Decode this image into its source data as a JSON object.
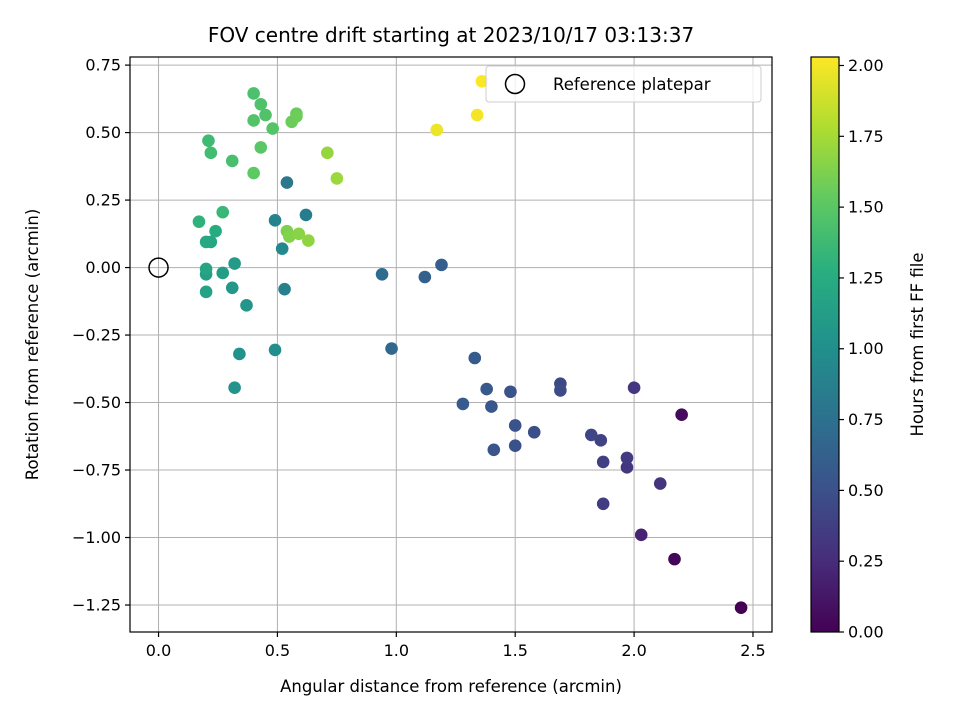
{
  "chart_data": {
    "type": "scatter",
    "title": "FOV centre drift starting at 2023/10/17 03:13:37",
    "xlabel": "Angular distance from reference (arcmin)",
    "ylabel": "Rotation from reference (arcmin)",
    "xlim": [
      -0.12,
      2.58
    ],
    "ylim": [
      -1.35,
      0.78
    ],
    "xticks": [
      0.0,
      0.5,
      1.0,
      1.5,
      2.0,
      2.5
    ],
    "xtick_labels": [
      "0.0",
      "0.5",
      "1.0",
      "1.5",
      "2.0",
      "2.5"
    ],
    "yticks": [
      0.75,
      0.5,
      0.25,
      0.0,
      -0.25,
      -0.5,
      -0.75,
      -1.0,
      -1.25
    ],
    "ytick_labels": [
      "0.75",
      "0.50",
      "0.25",
      "0.00",
      "−0.25",
      "−0.50",
      "−0.75",
      "−1.00",
      "−1.25"
    ],
    "grid": true,
    "legend": {
      "placement": "top-right",
      "entries": [
        "Reference platepar"
      ]
    },
    "reference_point": {
      "x": 0.0,
      "y": 0.0,
      "label": "Reference platepar"
    },
    "colorbar": {
      "label": "Hours from first FF file",
      "colormap": "viridis",
      "range": [
        0.0,
        2.03
      ],
      "ticks": [
        0.0,
        0.25,
        0.5,
        0.75,
        1.0,
        1.25,
        1.5,
        1.75,
        2.0
      ],
      "tick_labels": [
        "0.00",
        "0.25",
        "0.50",
        "0.75",
        "1.00",
        "1.25",
        "1.50",
        "1.75",
        "2.00"
      ]
    },
    "points": [
      {
        "x": 2.45,
        "y": -1.26,
        "hours": 0.0
      },
      {
        "x": 2.17,
        "y": -1.08,
        "hours": 0.03
      },
      {
        "x": 2.2,
        "y": -0.545,
        "hours": 0.05
      },
      {
        "x": 2.03,
        "y": -0.99,
        "hours": 0.2
      },
      {
        "x": 2.11,
        "y": -0.8,
        "hours": 0.3
      },
      {
        "x": 2.0,
        "y": -0.445,
        "hours": 0.32
      },
      {
        "x": 1.97,
        "y": -0.74,
        "hours": 0.33
      },
      {
        "x": 1.97,
        "y": -0.705,
        "hours": 0.35
      },
      {
        "x": 1.87,
        "y": -0.875,
        "hours": 0.36
      },
      {
        "x": 1.87,
        "y": -0.72,
        "hours": 0.38
      },
      {
        "x": 1.86,
        "y": -0.64,
        "hours": 0.4
      },
      {
        "x": 1.82,
        "y": -0.62,
        "hours": 0.42
      },
      {
        "x": 1.69,
        "y": -0.43,
        "hours": 0.44
      },
      {
        "x": 1.69,
        "y": -0.455,
        "hours": 0.46
      },
      {
        "x": 1.58,
        "y": -0.61,
        "hours": 0.48
      },
      {
        "x": 1.5,
        "y": -0.66,
        "hours": 0.5
      },
      {
        "x": 1.5,
        "y": -0.585,
        "hours": 0.51
      },
      {
        "x": 1.48,
        "y": -0.46,
        "hours": 0.52
      },
      {
        "x": 1.41,
        "y": -0.675,
        "hours": 0.53
      },
      {
        "x": 1.4,
        "y": -0.515,
        "hours": 0.55
      },
      {
        "x": 1.38,
        "y": -0.45,
        "hours": 0.56
      },
      {
        "x": 1.33,
        "y": -0.335,
        "hours": 0.57
      },
      {
        "x": 1.28,
        "y": -0.505,
        "hours": 0.58
      },
      {
        "x": 1.19,
        "y": 0.01,
        "hours": 0.6
      },
      {
        "x": 1.12,
        "y": -0.035,
        "hours": 0.62
      },
      {
        "x": 0.98,
        "y": -0.3,
        "hours": 0.68
      },
      {
        "x": 0.94,
        "y": -0.025,
        "hours": 0.72
      },
      {
        "x": 0.54,
        "y": 0.315,
        "hours": 0.8
      },
      {
        "x": 0.62,
        "y": 0.195,
        "hours": 0.85
      },
      {
        "x": 0.53,
        "y": -0.08,
        "hours": 0.88
      },
      {
        "x": 0.49,
        "y": 0.175,
        "hours": 0.9
      },
      {
        "x": 0.52,
        "y": 0.07,
        "hours": 0.95
      },
      {
        "x": 0.49,
        "y": -0.305,
        "hours": 1.0
      },
      {
        "x": 0.34,
        "y": -0.32,
        "hours": 1.02
      },
      {
        "x": 0.32,
        "y": -0.445,
        "hours": 1.04
      },
      {
        "x": 0.37,
        "y": -0.14,
        "hours": 1.06
      },
      {
        "x": 0.31,
        "y": -0.075,
        "hours": 1.08
      },
      {
        "x": 0.32,
        "y": 0.015,
        "hours": 1.1
      },
      {
        "x": 0.27,
        "y": -0.02,
        "hours": 1.12
      },
      {
        "x": 0.2,
        "y": -0.025,
        "hours": 1.14
      },
      {
        "x": 0.2,
        "y": -0.09,
        "hours": 1.16
      },
      {
        "x": 0.2,
        "y": -0.005,
        "hours": 1.18
      },
      {
        "x": 0.22,
        "y": 0.095,
        "hours": 1.2
      },
      {
        "x": 0.2,
        "y": 0.095,
        "hours": 1.22
      },
      {
        "x": 0.24,
        "y": 0.135,
        "hours": 1.25
      },
      {
        "x": 0.17,
        "y": 0.17,
        "hours": 1.3
      },
      {
        "x": 0.27,
        "y": 0.205,
        "hours": 1.35
      },
      {
        "x": 0.21,
        "y": 0.47,
        "hours": 1.38
      },
      {
        "x": 0.22,
        "y": 0.425,
        "hours": 1.4
      },
      {
        "x": 0.31,
        "y": 0.395,
        "hours": 1.42
      },
      {
        "x": 0.4,
        "y": 0.645,
        "hours": 1.44
      },
      {
        "x": 0.43,
        "y": 0.605,
        "hours": 1.45
      },
      {
        "x": 0.45,
        "y": 0.565,
        "hours": 1.46
      },
      {
        "x": 0.4,
        "y": 0.545,
        "hours": 1.47
      },
      {
        "x": 0.48,
        "y": 0.515,
        "hours": 1.48
      },
      {
        "x": 0.43,
        "y": 0.445,
        "hours": 1.5
      },
      {
        "x": 0.4,
        "y": 0.35,
        "hours": 1.52
      },
      {
        "x": 0.58,
        "y": 0.57,
        "hours": 1.55
      },
      {
        "x": 0.56,
        "y": 0.54,
        "hours": 1.56
      },
      {
        "x": 0.58,
        "y": 0.56,
        "hours": 1.57
      },
      {
        "x": 0.54,
        "y": 0.135,
        "hours": 1.62
      },
      {
        "x": 0.55,
        "y": 0.115,
        "hours": 1.64
      },
      {
        "x": 0.59,
        "y": 0.125,
        "hours": 1.66
      },
      {
        "x": 0.63,
        "y": 0.1,
        "hours": 1.68
      },
      {
        "x": 0.71,
        "y": 0.425,
        "hours": 1.7
      },
      {
        "x": 0.75,
        "y": 0.33,
        "hours": 1.72
      },
      {
        "x": 1.17,
        "y": 0.51,
        "hours": 1.98
      },
      {
        "x": 1.34,
        "y": 0.565,
        "hours": 2.0
      },
      {
        "x": 1.36,
        "y": 0.69,
        "hours": 2.02
      }
    ]
  }
}
